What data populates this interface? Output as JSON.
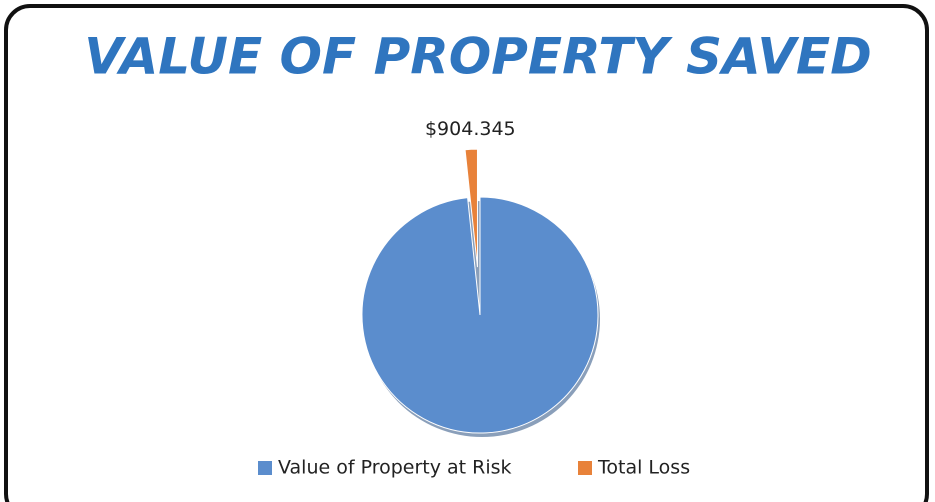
{
  "chart_data": {
    "type": "pie",
    "title": "VALUE OF PROPERTY SAVED",
    "categories": [
      "Value of Property at Risk",
      "Total Loss"
    ],
    "values": [
      53000,
      904.345
    ],
    "value_labels": [
      null,
      "$904.345"
    ],
    "colors": [
      "#5b8dcd",
      "#e8823a"
    ],
    "legend": "bottom"
  }
}
